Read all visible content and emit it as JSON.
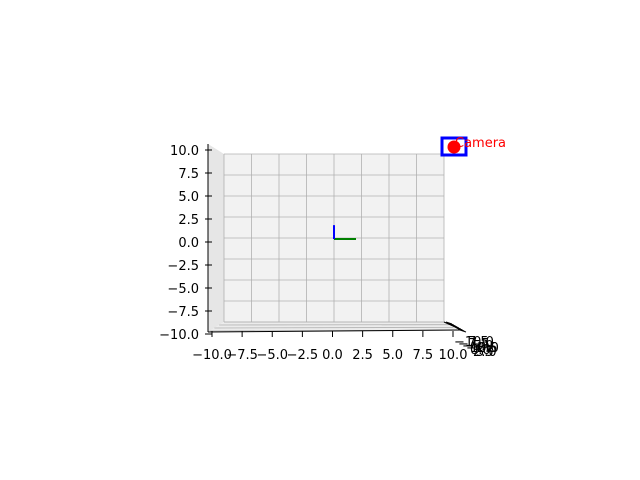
{
  "chart_data": {
    "type": "scatter",
    "projection": "3d",
    "title": "",
    "xlabel": "",
    "ylabel": "",
    "zlabel": "",
    "xlim": [
      -10,
      10
    ],
    "zlim": [
      -10,
      10
    ],
    "grid": true,
    "pane_color": "#f2f2f2",
    "grid_color": "#b0b0b0",
    "x_ticks": [
      "−10.0",
      "−7.5",
      "−5.0",
      "−2.5",
      "0.0",
      "2.5",
      "5.0",
      "7.5",
      "10.0"
    ],
    "z_ticks": [
      "−10.0",
      "−7.5",
      "−5.0",
      "−2.5",
      "0.0",
      "2.5",
      "5.0",
      "7.5",
      "10.0"
    ],
    "x_tick_values": [
      -10,
      -7.5,
      -5,
      -2.5,
      0,
      2.5,
      5,
      7.5,
      10
    ],
    "z_tick_values": [
      -10,
      -7.5,
      -5,
      -2.5,
      0,
      2.5,
      5,
      7.5,
      10
    ],
    "y_ticks_text": [
      "−10.0",
      "−7.5",
      "−5.0",
      "−2.5",
      "0.0",
      "2.5",
      "5.0",
      "7.5",
      "10.0"
    ],
    "y_tick_values": [
      -10,
      -7.5,
      -5,
      -2.5,
      0,
      2.5,
      5,
      7.5,
      10
    ],
    "y_tick_labels_visible": [
      "10.0",
      "0.0"
    ],
    "origin_axes": [
      {
        "name": "x",
        "color": "#008000",
        "from": [
          0,
          0,
          0
        ],
        "to": [
          2,
          0,
          0
        ]
      },
      {
        "name": "z",
        "color": "#0000ff",
        "from": [
          0,
          0,
          0
        ],
        "to": [
          0,
          0,
          1.5
        ]
      }
    ],
    "camera": {
      "label": "Camera",
      "label_color": "#ff0000",
      "marker_color": "#ff0000",
      "frame_color": "#0000ff",
      "position": [
        11,
        0,
        8.3
      ]
    }
  }
}
